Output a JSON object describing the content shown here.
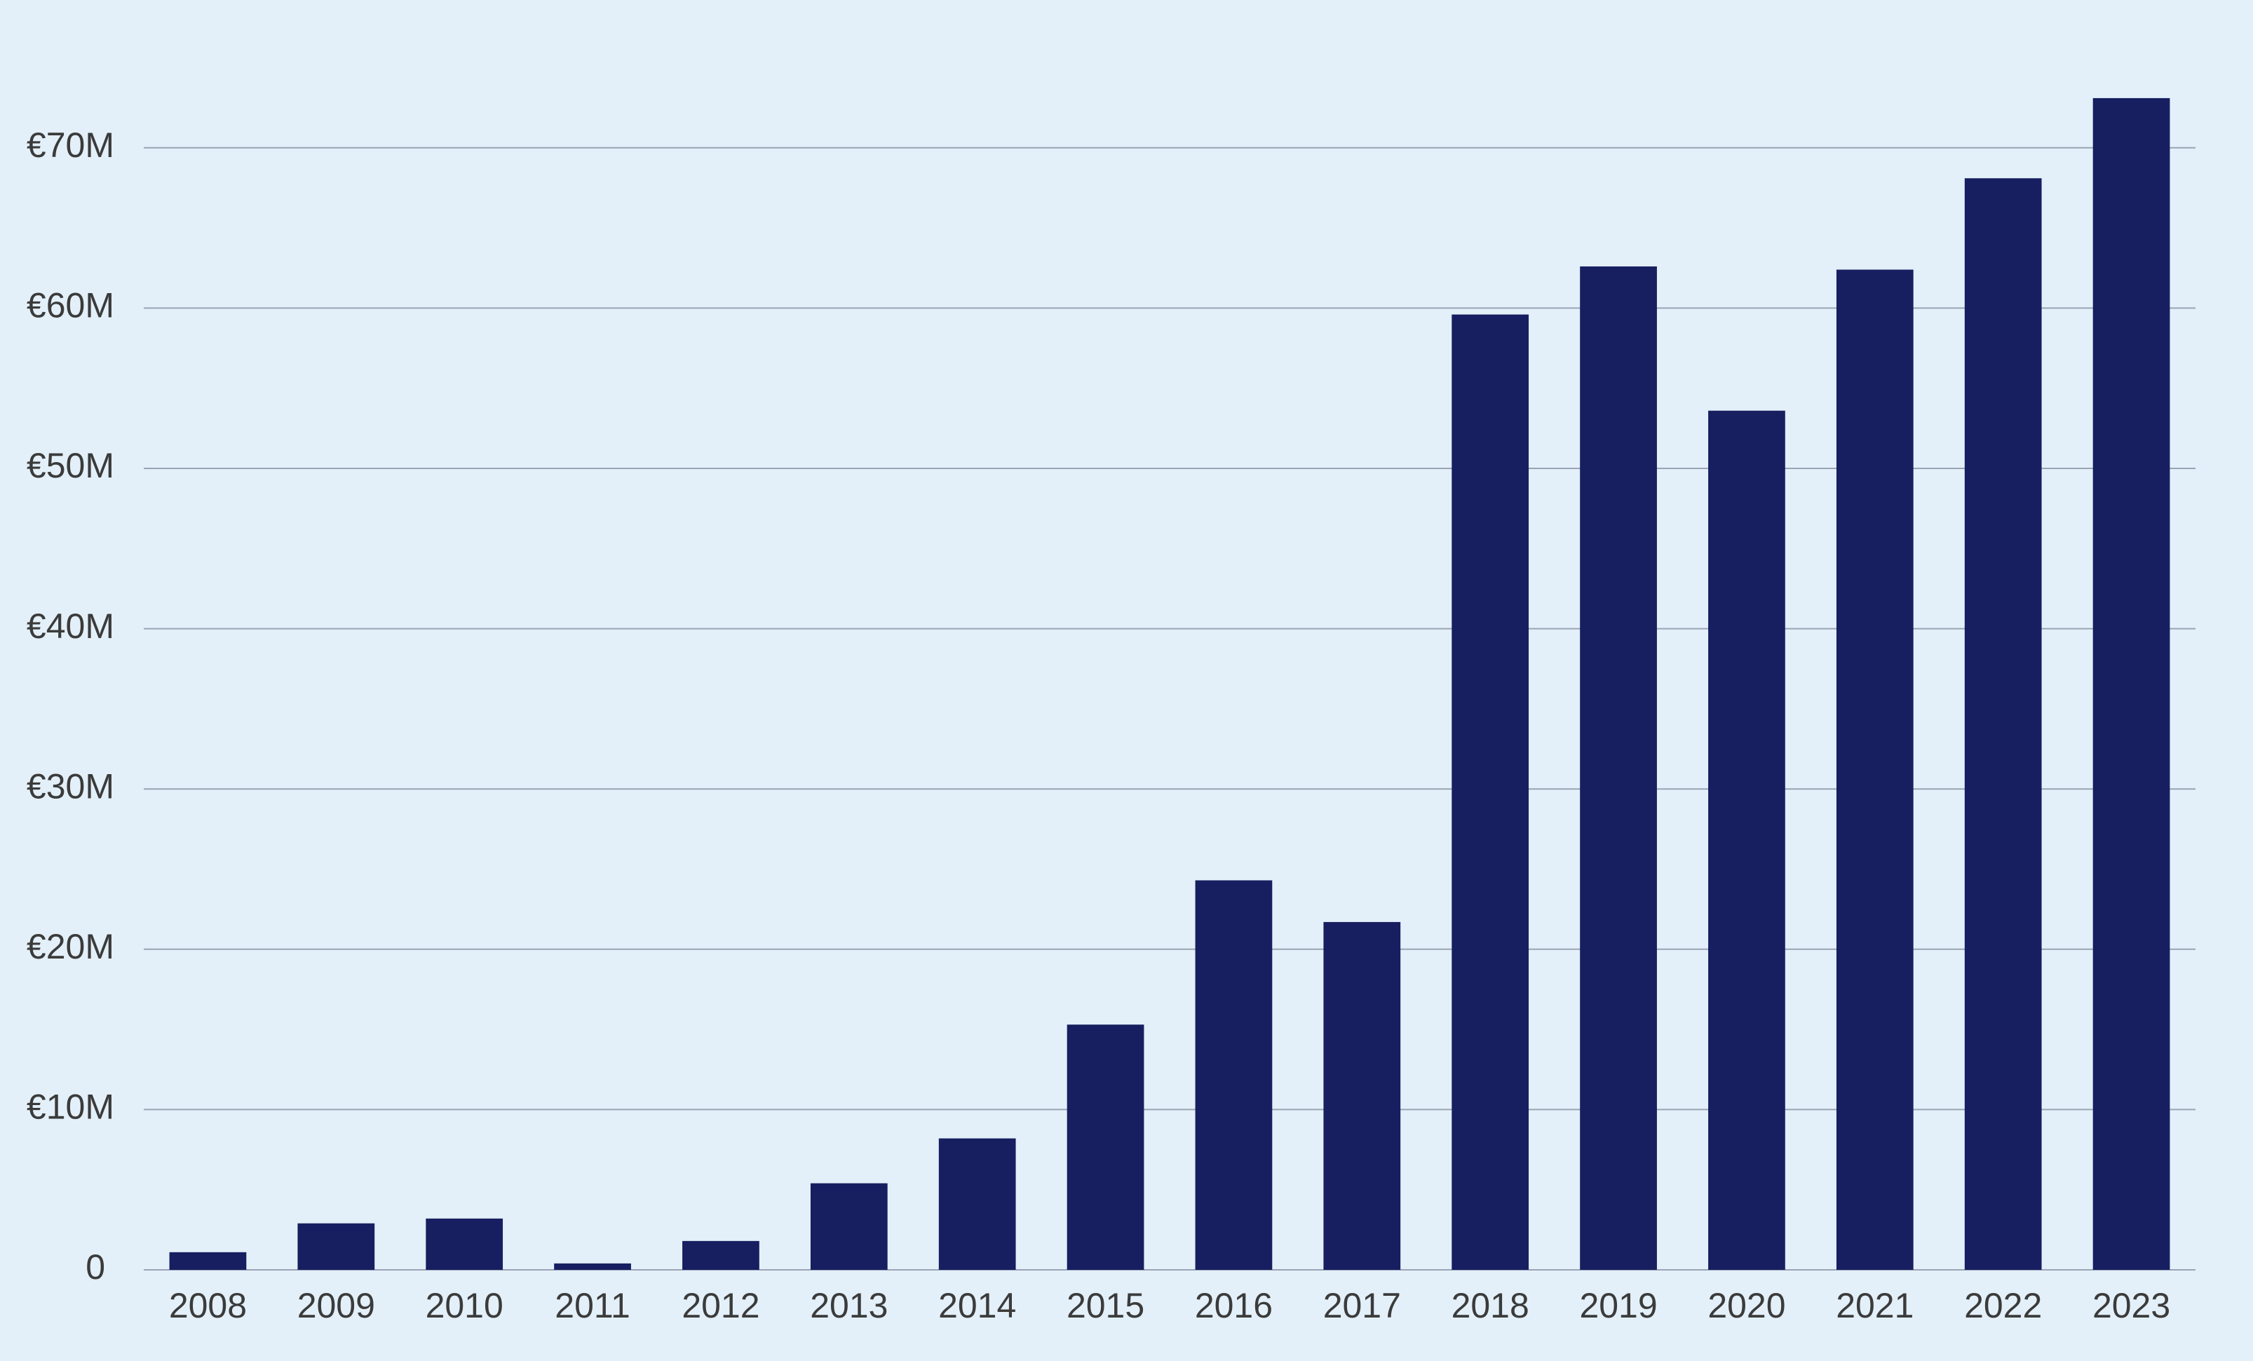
{
  "chart_data": {
    "type": "bar",
    "categories": [
      "2008",
      "2009",
      "2010",
      "2011",
      "2012",
      "2013",
      "2014",
      "2015",
      "2016",
      "2017",
      "2018",
      "2019",
      "2020",
      "2021",
      "2022",
      "2023"
    ],
    "values": [
      1.1,
      2.9,
      3.2,
      0.4,
      1.8,
      5.4,
      8.2,
      15.3,
      24.3,
      21.7,
      59.6,
      62.6,
      53.6,
      62.4,
      68.1,
      73.1
    ],
    "ylim": [
      0,
      80
    ],
    "y_ticks": [
      0,
      10,
      20,
      30,
      40,
      50,
      60,
      70
    ],
    "y_tick_labels": [
      "0",
      "€10M",
      "€20M",
      "€30M",
      "€40M",
      "€50M",
      "€60M",
      "€70M"
    ],
    "title": "",
    "xlabel": "",
    "ylabel": "",
    "grid": true,
    "bar_color": "#171f61",
    "background_color": "#e3f0f9",
    "grid_color": "#9aa4b4"
  }
}
